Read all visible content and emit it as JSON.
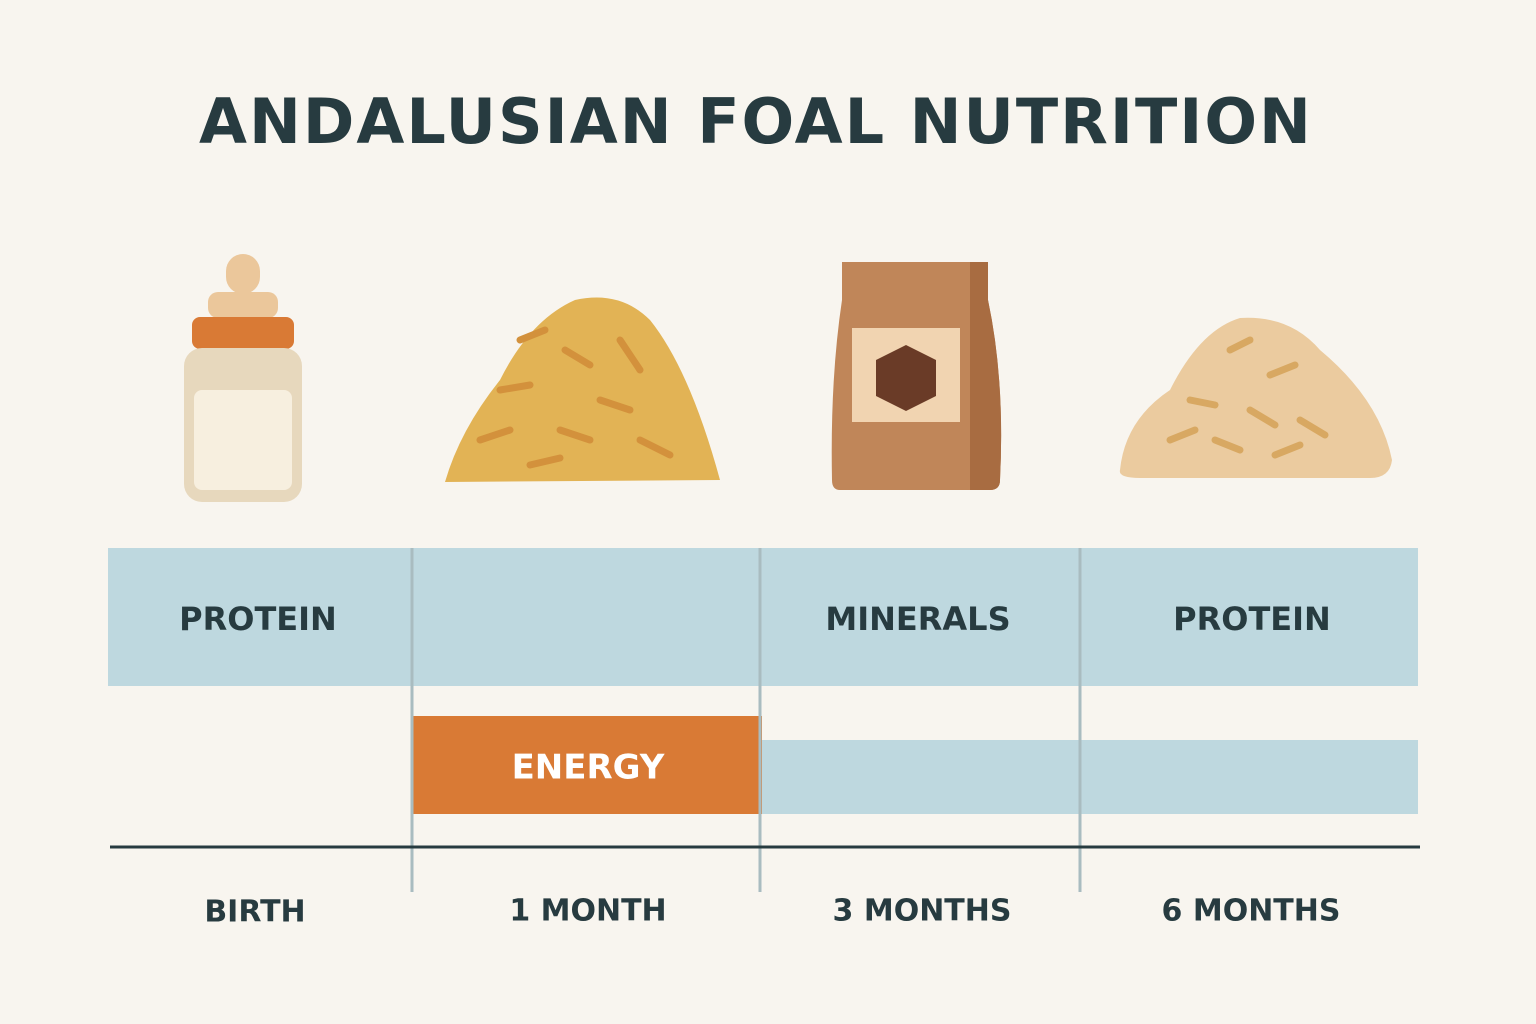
{
  "title": "ANDALUSIAN FOAL NUTRITION",
  "nutrient_row": [
    "PROTEIN",
    "MINERALS",
    "PROTEIN"
  ],
  "energy_row": "ENERGY",
  "timeline": [
    "BIRTH",
    "1 MONTH",
    "3 MONTHS",
    "6 MONTHS"
  ]
}
